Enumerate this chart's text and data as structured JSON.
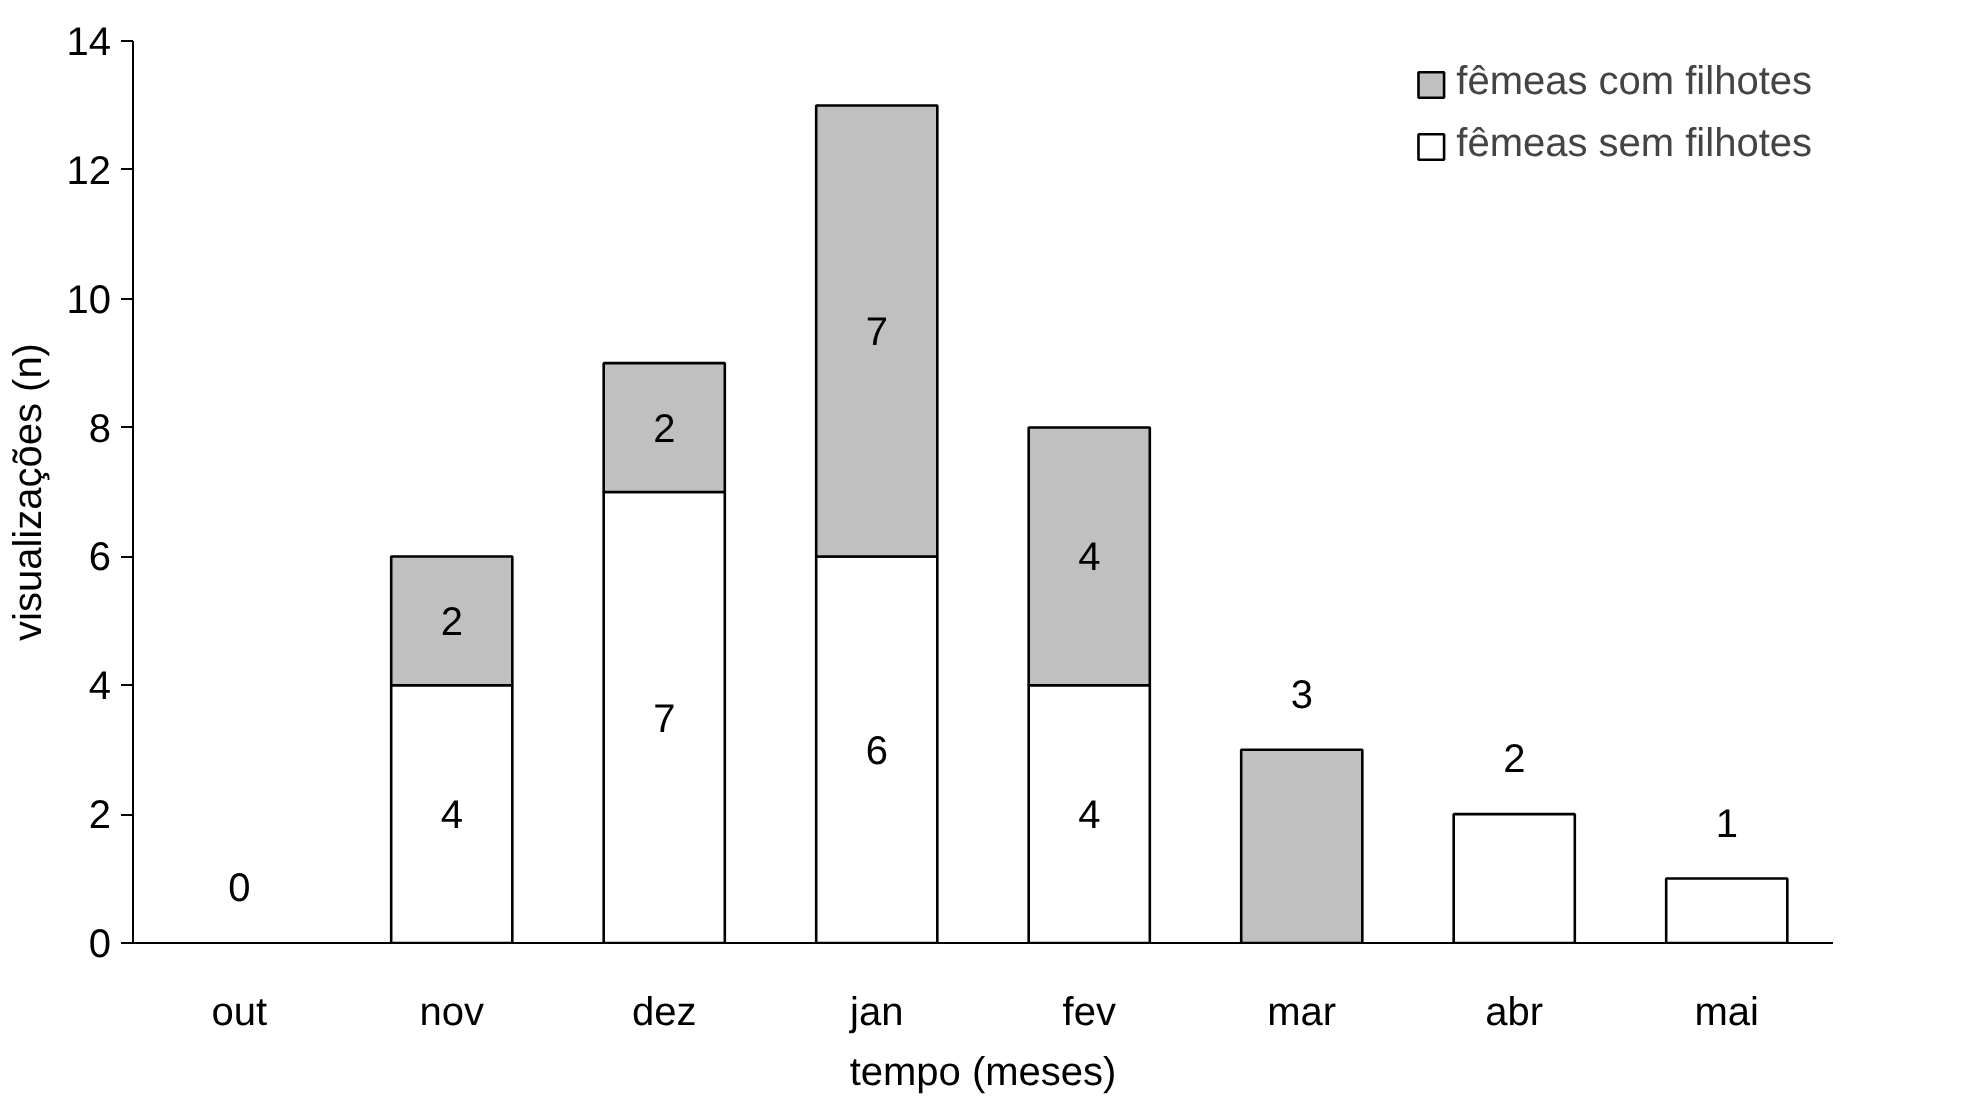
{
  "chart_data": {
    "type": "bar",
    "stacked": true,
    "xlabel": "tempo (meses)",
    "ylabel": "visualizações (n)",
    "categories": [
      "out",
      "nov",
      "dez",
      "jan",
      "fev",
      "mar",
      "abr",
      "mai"
    ],
    "series": [
      {
        "name": "fêmeas sem filhotes",
        "color": "#ffffff",
        "values": [
          0,
          4,
          7,
          6,
          4,
          0,
          2,
          1
        ],
        "value_labels": [
          null,
          "4",
          "7",
          "6",
          "4",
          null,
          null,
          null
        ]
      },
      {
        "name": "fêmeas com filhotes",
        "color": "#c0c0c0",
        "values": [
          0,
          2,
          2,
          7,
          4,
          3,
          0,
          0
        ],
        "value_labels": [
          null,
          "2",
          "2",
          "7",
          "4",
          null,
          null,
          null
        ]
      }
    ],
    "totals": [
      "0",
      null,
      null,
      null,
      null,
      "3",
      "2",
      "1"
    ],
    "ylim": [
      0,
      14
    ],
    "yticks": [
      0,
      2,
      4,
      6,
      8,
      10,
      12,
      14
    ],
    "grid": false,
    "legend": "top right"
  }
}
